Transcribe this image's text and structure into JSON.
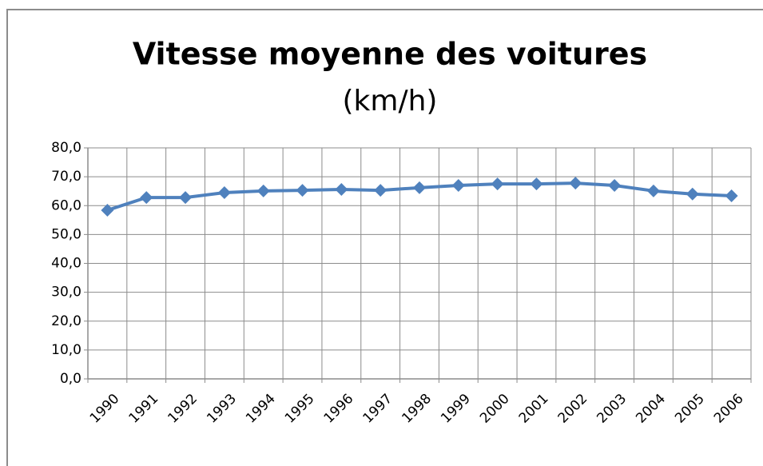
{
  "chart_data": {
    "type": "line",
    "title": "Vitesse moyenne des voitures",
    "subtitle": "(km/h)",
    "categories": [
      "1990",
      "1991",
      "1992",
      "1993",
      "1994",
      "1995",
      "1996",
      "1997",
      "1998",
      "1999",
      "2000",
      "2001",
      "2002",
      "2003",
      "2004",
      "2005",
      "2006"
    ],
    "series": [
      {
        "name": "Vitesse moyenne",
        "color": "#4f81bd",
        "values": [
          58.4,
          62.8,
          62.8,
          64.5,
          65.1,
          65.3,
          65.6,
          65.3,
          66.2,
          67.0,
          67.5,
          67.5,
          67.8,
          67.0,
          65.1,
          64.0,
          63.4
        ]
      }
    ],
    "ylim": [
      0,
      80
    ],
    "yticks": [
      {
        "value": 0,
        "label": "0,0"
      },
      {
        "value": 10,
        "label": "10,0"
      },
      {
        "value": 20,
        "label": "20,0"
      },
      {
        "value": 30,
        "label": "30,0"
      },
      {
        "value": 40,
        "label": "40,0"
      },
      {
        "value": 50,
        "label": "50,0"
      },
      {
        "value": 60,
        "label": "60,0"
      },
      {
        "value": 70,
        "label": "70,0"
      },
      {
        "value": 80,
        "label": "80,0"
      }
    ],
    "grid": true
  }
}
